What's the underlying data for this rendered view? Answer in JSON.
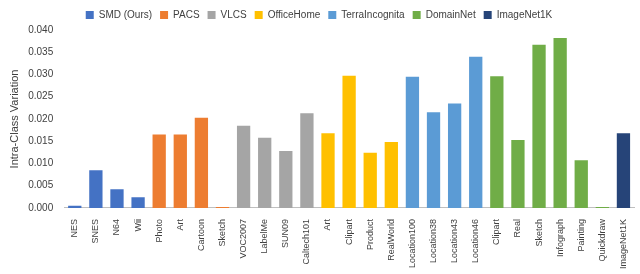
{
  "chart_data": {
    "type": "bar",
    "y_label": "Intra-Class Variation",
    "categories": [
      "NES",
      "SNES",
      "N64",
      "Wii",
      "Photo",
      "Art",
      "Cartoon",
      "Sketch",
      "VOC2007",
      "LabelMe",
      "SUN09",
      "Caltech101",
      "Art",
      "Clipart",
      "Product",
      "RealWorld",
      "Location100",
      "Location38",
      "Location43",
      "Location46",
      "Clipart",
      "Real",
      "Sketch",
      "Infograph",
      "Painting",
      "Quickdraw",
      "ImageNet1K"
    ],
    "series": [
      {
        "name": "SMD (Ours)",
        "color": "#4472c4",
        "values": [
          0.0005,
          0.0085,
          0.0042,
          0.0024,
          null,
          null,
          null,
          null,
          null,
          null,
          null,
          null,
          null,
          null,
          null,
          null,
          null,
          null,
          null,
          null,
          null,
          null,
          null,
          null,
          null,
          null,
          null
        ]
      },
      {
        "name": "PACS",
        "color": "#ed7d31",
        "values": [
          null,
          null,
          null,
          null,
          0.0165,
          0.0165,
          0.0203,
          0.0002,
          null,
          null,
          null,
          null,
          null,
          null,
          null,
          null,
          null,
          null,
          null,
          null,
          null,
          null,
          null,
          null,
          null,
          null,
          null
        ]
      },
      {
        "name": "VLCS",
        "color": "#a5a5a5",
        "values": [
          null,
          null,
          null,
          null,
          null,
          null,
          null,
          null,
          0.0185,
          0.0158,
          0.0128,
          0.0213,
          null,
          null,
          null,
          null,
          null,
          null,
          null,
          null,
          null,
          null,
          null,
          null,
          null,
          null,
          null
        ]
      },
      {
        "name": "OfficeHome",
        "color": "#ffc000",
        "values": [
          null,
          null,
          null,
          null,
          null,
          null,
          null,
          null,
          null,
          null,
          null,
          null,
          0.0168,
          0.0297,
          0.0124,
          0.0148,
          null,
          null,
          null,
          null,
          null,
          null,
          null,
          null,
          null,
          null,
          null
        ]
      },
      {
        "name": "TerraIncognita",
        "color": "#5b9bd5",
        "values": [
          null,
          null,
          null,
          null,
          null,
          null,
          null,
          null,
          null,
          null,
          null,
          null,
          null,
          null,
          null,
          null,
          0.0295,
          0.0215,
          0.0235,
          0.034,
          null,
          null,
          null,
          null,
          null,
          null,
          null
        ]
      },
      {
        "name": "DomainNet",
        "color": "#70ad47",
        "values": [
          null,
          null,
          null,
          null,
          null,
          null,
          null,
          null,
          null,
          null,
          null,
          null,
          null,
          null,
          null,
          null,
          null,
          null,
          null,
          null,
          0.0296,
          0.0153,
          0.0367,
          0.0382,
          0.0107,
          0.0002,
          null
        ]
      },
      {
        "name": "ImageNet1K",
        "color": "#264478",
        "values": [
          null,
          null,
          null,
          null,
          null,
          null,
          null,
          null,
          null,
          null,
          null,
          null,
          null,
          null,
          null,
          null,
          null,
          null,
          null,
          null,
          null,
          null,
          null,
          null,
          null,
          null,
          0.0168
        ]
      }
    ],
    "ylim": [
      0,
      0.04
    ],
    "yticks": [
      {
        "value": 0,
        "label": "0.000"
      },
      {
        "value": 0.005,
        "label": "0.005"
      },
      {
        "value": 0.01,
        "label": "0.010"
      },
      {
        "value": 0.015,
        "label": "0.015"
      },
      {
        "value": 0.02,
        "label": "0.020"
      },
      {
        "value": 0.025,
        "label": "0.025"
      },
      {
        "value": 0.03,
        "label": "0.030"
      },
      {
        "value": 0.035,
        "label": "0.035"
      },
      {
        "value": 0.04,
        "label": "0.040"
      }
    ],
    "grid": false,
    "legend": "top"
  }
}
